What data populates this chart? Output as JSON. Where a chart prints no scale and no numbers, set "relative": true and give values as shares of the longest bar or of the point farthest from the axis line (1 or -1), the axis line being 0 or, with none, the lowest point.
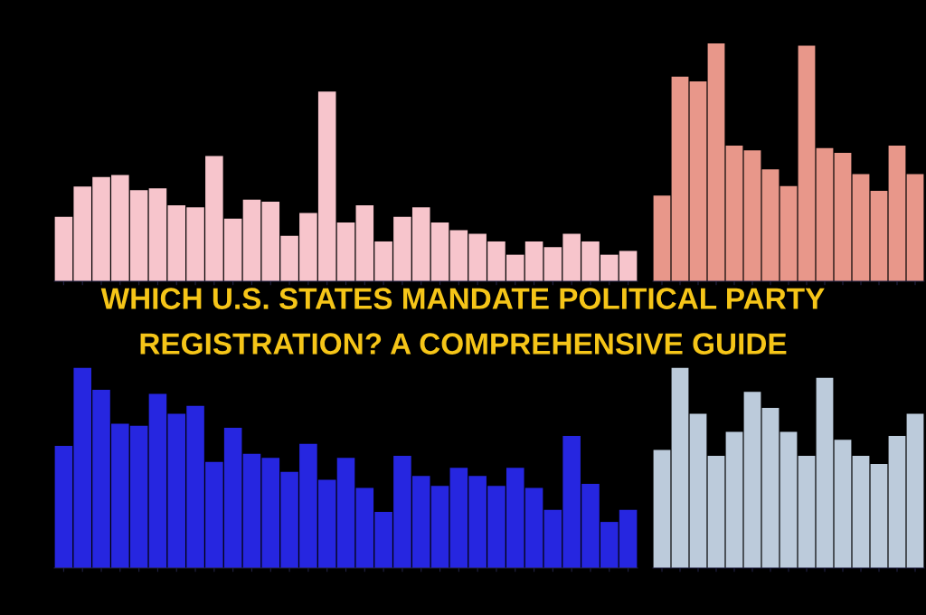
{
  "chart_data": [
    {
      "type": "bar",
      "relative": true,
      "categories": [
        null,
        null,
        null,
        null,
        null,
        null,
        null,
        null,
        null,
        null,
        null,
        null,
        null,
        null,
        null,
        null,
        null,
        null,
        null,
        null,
        null,
        null,
        null,
        null,
        null,
        null,
        null,
        null,
        null,
        null,
        null
      ],
      "color": "#f7c5cc",
      "values": [
        0.34,
        0.5,
        0.55,
        0.56,
        0.48,
        0.49,
        0.4,
        0.39,
        0.66,
        0.33,
        0.43,
        0.42,
        0.24,
        0.36,
        1,
        0.31,
        0.4,
        0.21,
        0.34,
        0.39,
        0.31,
        0.27,
        0.25,
        0.21,
        0.14,
        0.21,
        0.18,
        0.25,
        0.21,
        0.14,
        0.16
      ],
      "annotations": [
        "WHICH U.S. STATES MANDATE POLITICAL PARTY",
        "REGISTRATION? A COMPREHENSIVE GUIDE"
      ]
    },
    {
      "type": "bar",
      "relative": true,
      "categories": [
        null,
        null,
        null,
        null,
        null,
        null,
        null,
        null,
        null,
        null,
        null,
        null,
        null,
        null,
        null
      ],
      "color": "#e8978a",
      "values": [
        0.36,
        0.86,
        0.84,
        1,
        0.57,
        0.55,
        0.47,
        0.4,
        0.99,
        0.56,
        0.54,
        0.45,
        0.38,
        0.57,
        0.45
      ]
    },
    {
      "type": "bar",
      "relative": true,
      "categories": [
        null,
        null,
        null,
        null,
        null,
        null,
        null,
        null,
        null,
        null,
        null,
        null,
        null,
        null,
        null,
        null,
        null,
        null,
        null,
        null,
        null,
        null,
        null,
        null,
        null,
        null,
        null,
        null,
        null,
        null,
        null
      ],
      "color": "#2626e0",
      "values": [
        0.61,
        1,
        0.89,
        0.72,
        0.71,
        0.87,
        0.77,
        0.81,
        0.53,
        0.7,
        0.57,
        0.55,
        0.48,
        0.62,
        0.44,
        0.55,
        0.4,
        0.28,
        0.56,
        0.46,
        0.41,
        0.5,
        0.46,
        0.41,
        0.5,
        0.4,
        0.29,
        0.66,
        0.42,
        0.23,
        0.29
      ]
    },
    {
      "type": "bar",
      "relative": true,
      "categories": [
        null,
        null,
        null,
        null,
        null,
        null,
        null,
        null,
        null,
        null,
        null,
        null,
        null,
        null,
        null
      ],
      "color": "#bccbdb",
      "values": [
        0.59,
        1,
        0.77,
        0.56,
        0.68,
        0.88,
        0.8,
        0.68,
        0.56,
        0.95,
        0.64,
        0.56,
        0.52,
        0.66,
        0.77
      ]
    }
  ]
}
